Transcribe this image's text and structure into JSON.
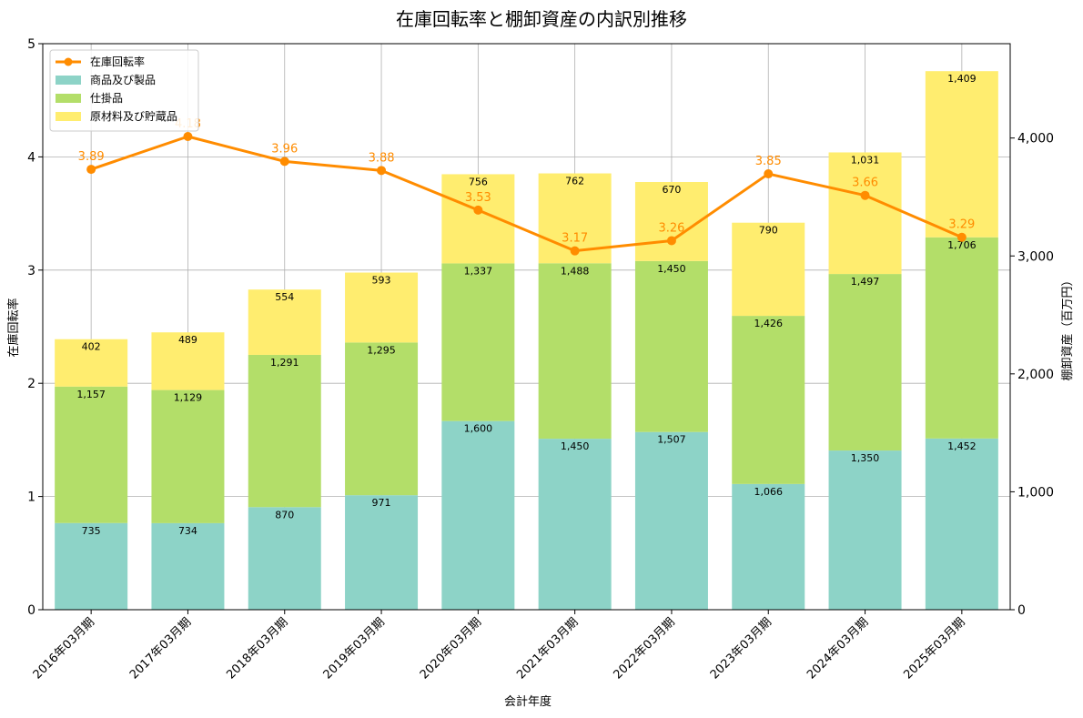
{
  "chart_data": {
    "type": "bar",
    "title": "在庫回転率と棚卸資産の内訳別推移",
    "xlabel": "会計年度",
    "ylabel_left": "在庫回転率",
    "ylabel_right": "棚卸資産（百万円）",
    "categories": [
      "2016年03月期",
      "2017年03月期",
      "2018年03月期",
      "2019年03月期",
      "2020年03月期",
      "2021年03月期",
      "2022年03月期",
      "2023年03月期",
      "2024年03月期",
      "2025年03月期"
    ],
    "stacked_series": [
      {
        "name": "商品及び製品",
        "color": "#8dd3c7",
        "values": [
          735,
          734,
          870,
          971,
          1600,
          1450,
          1507,
          1066,
          1350,
          1452
        ]
      },
      {
        "name": "仕掛品",
        "color": "#b3de69",
        "values": [
          1157,
          1129,
          1291,
          1295,
          1337,
          1488,
          1450,
          1426,
          1497,
          1706
        ]
      },
      {
        "name": "原材料及び貯蔵品",
        "color": "#ffed6f",
        "values": [
          402,
          489,
          554,
          593,
          756,
          762,
          670,
          790,
          1031,
          1409
        ]
      }
    ],
    "line_series": {
      "name": "在庫回転率",
      "color": "#ff8c00",
      "values": [
        3.89,
        4.18,
        3.96,
        3.88,
        3.53,
        3.17,
        3.26,
        3.85,
        3.66,
        3.29
      ]
    },
    "ylim_left": [
      0,
      5
    ],
    "ylim_right": [
      0,
      4800
    ],
    "yticks_left": [
      "0",
      "1",
      "2",
      "3",
      "4",
      "5"
    ],
    "yticks_right": [
      "0",
      "1,000",
      "2,000",
      "3,000",
      "4,000"
    ],
    "grid": true,
    "legend_position": "top-left"
  }
}
